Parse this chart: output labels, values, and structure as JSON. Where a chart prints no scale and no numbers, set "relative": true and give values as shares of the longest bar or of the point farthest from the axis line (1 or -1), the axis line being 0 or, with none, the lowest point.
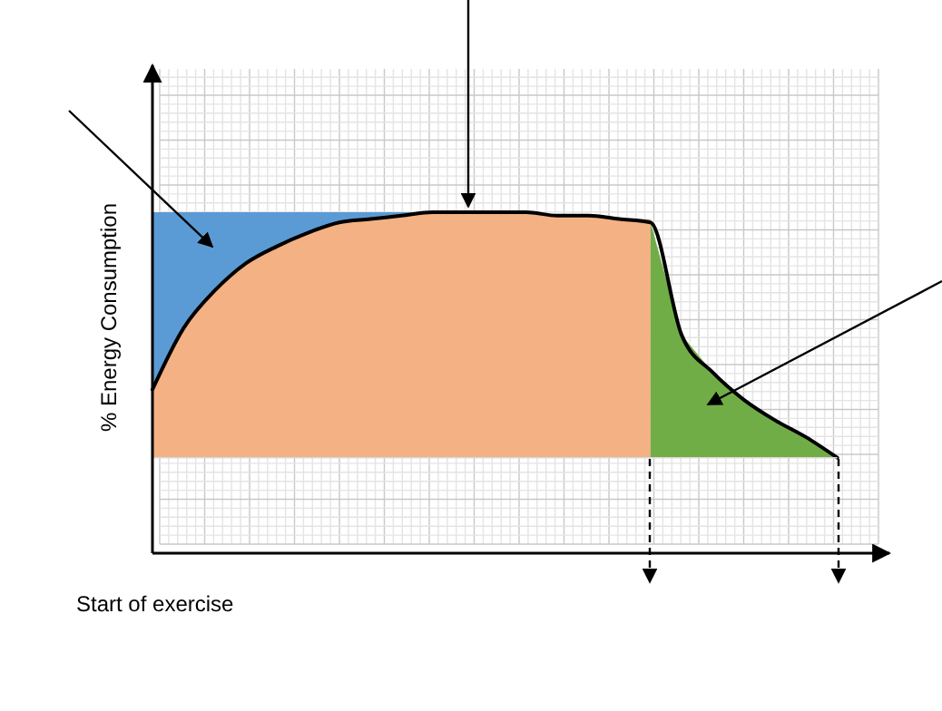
{
  "chart_data": {
    "type": "line",
    "relative": true,
    "ylabel": "% Energy Consumption",
    "xlabel": "Start of exercise",
    "grid": true,
    "categories": [
      null,
      null,
      null,
      null,
      null,
      null,
      null,
      null,
      null,
      null,
      null,
      null,
      null,
      null,
      null,
      null,
      null,
      null,
      null,
      null,
      null,
      null,
      null,
      null
    ],
    "ref_lines": [
      {
        "axis": "y",
        "value": 0.28,
        "color": "#d9d9d9"
      }
    ],
    "series": [
      {
        "type": "area",
        "color": "#5b9bd5",
        "values": [
          1,
          1,
          1,
          1,
          1,
          1,
          1,
          1,
          1,
          1,
          null,
          null,
          null,
          null,
          null,
          null,
          null,
          null,
          null,
          null,
          null,
          null,
          null,
          null
        ]
      },
      {
        "type": "area",
        "color": "#f4b183",
        "values": [
          0.48,
          0.66,
          0.77,
          0.85,
          0.9,
          0.94,
          0.97,
          0.98,
          0.99,
          1,
          1,
          1,
          1,
          0.99,
          0.99,
          0.98,
          0.98,
          null,
          null,
          null,
          null,
          null,
          null,
          null
        ]
      },
      {
        "type": "area",
        "color": "#70ad47",
        "values": [
          null,
          null,
          null,
          null,
          null,
          null,
          null,
          null,
          null,
          null,
          null,
          null,
          null,
          null,
          null,
          null,
          0.97,
          0.64,
          0.53,
          0.45,
          0.39,
          0.34,
          0.28,
          null
        ]
      },
      {
        "color": "#000000",
        "values": [
          0.48,
          0.66,
          0.77,
          0.85,
          0.9,
          0.94,
          0.97,
          0.98,
          0.99,
          1,
          1,
          1,
          1,
          0.99,
          0.99,
          0.98,
          0.97,
          0.64,
          0.53,
          0.45,
          0.39,
          0.34,
          0.28,
          null
        ]
      }
    ]
  }
}
